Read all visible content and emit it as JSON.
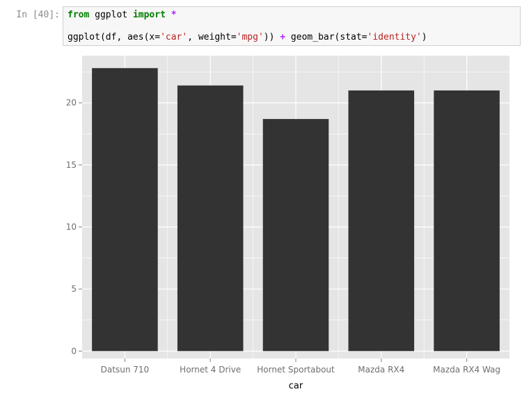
{
  "cell": {
    "prompt": "In [40]:",
    "line1": {
      "kw_from": "from",
      "module": " ggplot ",
      "kw_import": "import",
      "space": " ",
      "star": "*"
    },
    "line2": {
      "p1": "ggplot(df, aes(x=",
      "s1": "'car'",
      "p2": ", weight=",
      "s2": "'mpg'",
      "p3": ")) ",
      "plus": "+",
      "p4": " geom_bar(stat=",
      "s3": "'identity'",
      "p5": ")"
    }
  },
  "chart_data": {
    "type": "bar",
    "categories": [
      "Datsun 710",
      "Hornet 4 Drive",
      "Hornet Sportabout",
      "Mazda RX4",
      "Mazda RX4 Wag"
    ],
    "values": [
      22.8,
      21.4,
      18.7,
      21.0,
      21.0
    ],
    "xlabel": "car",
    "ylabel": "",
    "ylim": [
      -0.6,
      23.8
    ],
    "yticks": [
      0,
      5,
      10,
      15,
      20
    ],
    "grid": true,
    "colors": {
      "panel": "#e5e5e5",
      "grid": "#ffffff",
      "bar": "#333333",
      "tick_text": "#6e6e6e",
      "label_text": "#000000"
    }
  }
}
